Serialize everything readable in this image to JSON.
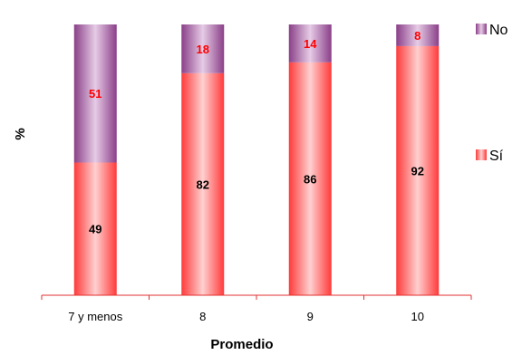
{
  "chart_data": {
    "type": "bar",
    "stacked": true,
    "percent": true,
    "categories": [
      "7 y menos",
      "8",
      "9",
      "10"
    ],
    "series": [
      {
        "name": "Sí",
        "values": [
          49,
          82,
          86,
          92
        ],
        "color": "#ff5a5a",
        "label_color": "#000000"
      },
      {
        "name": "No",
        "values": [
          51,
          18,
          14,
          8
        ],
        "color": "#9b4f96",
        "label_color": "#ff0000"
      }
    ],
    "xlabel": "Promedio",
    "ylabel": "%",
    "ylim": [
      0,
      100
    ],
    "grid": false,
    "legend": {
      "placement": "right",
      "order": [
        "No",
        "Sí"
      ]
    }
  }
}
